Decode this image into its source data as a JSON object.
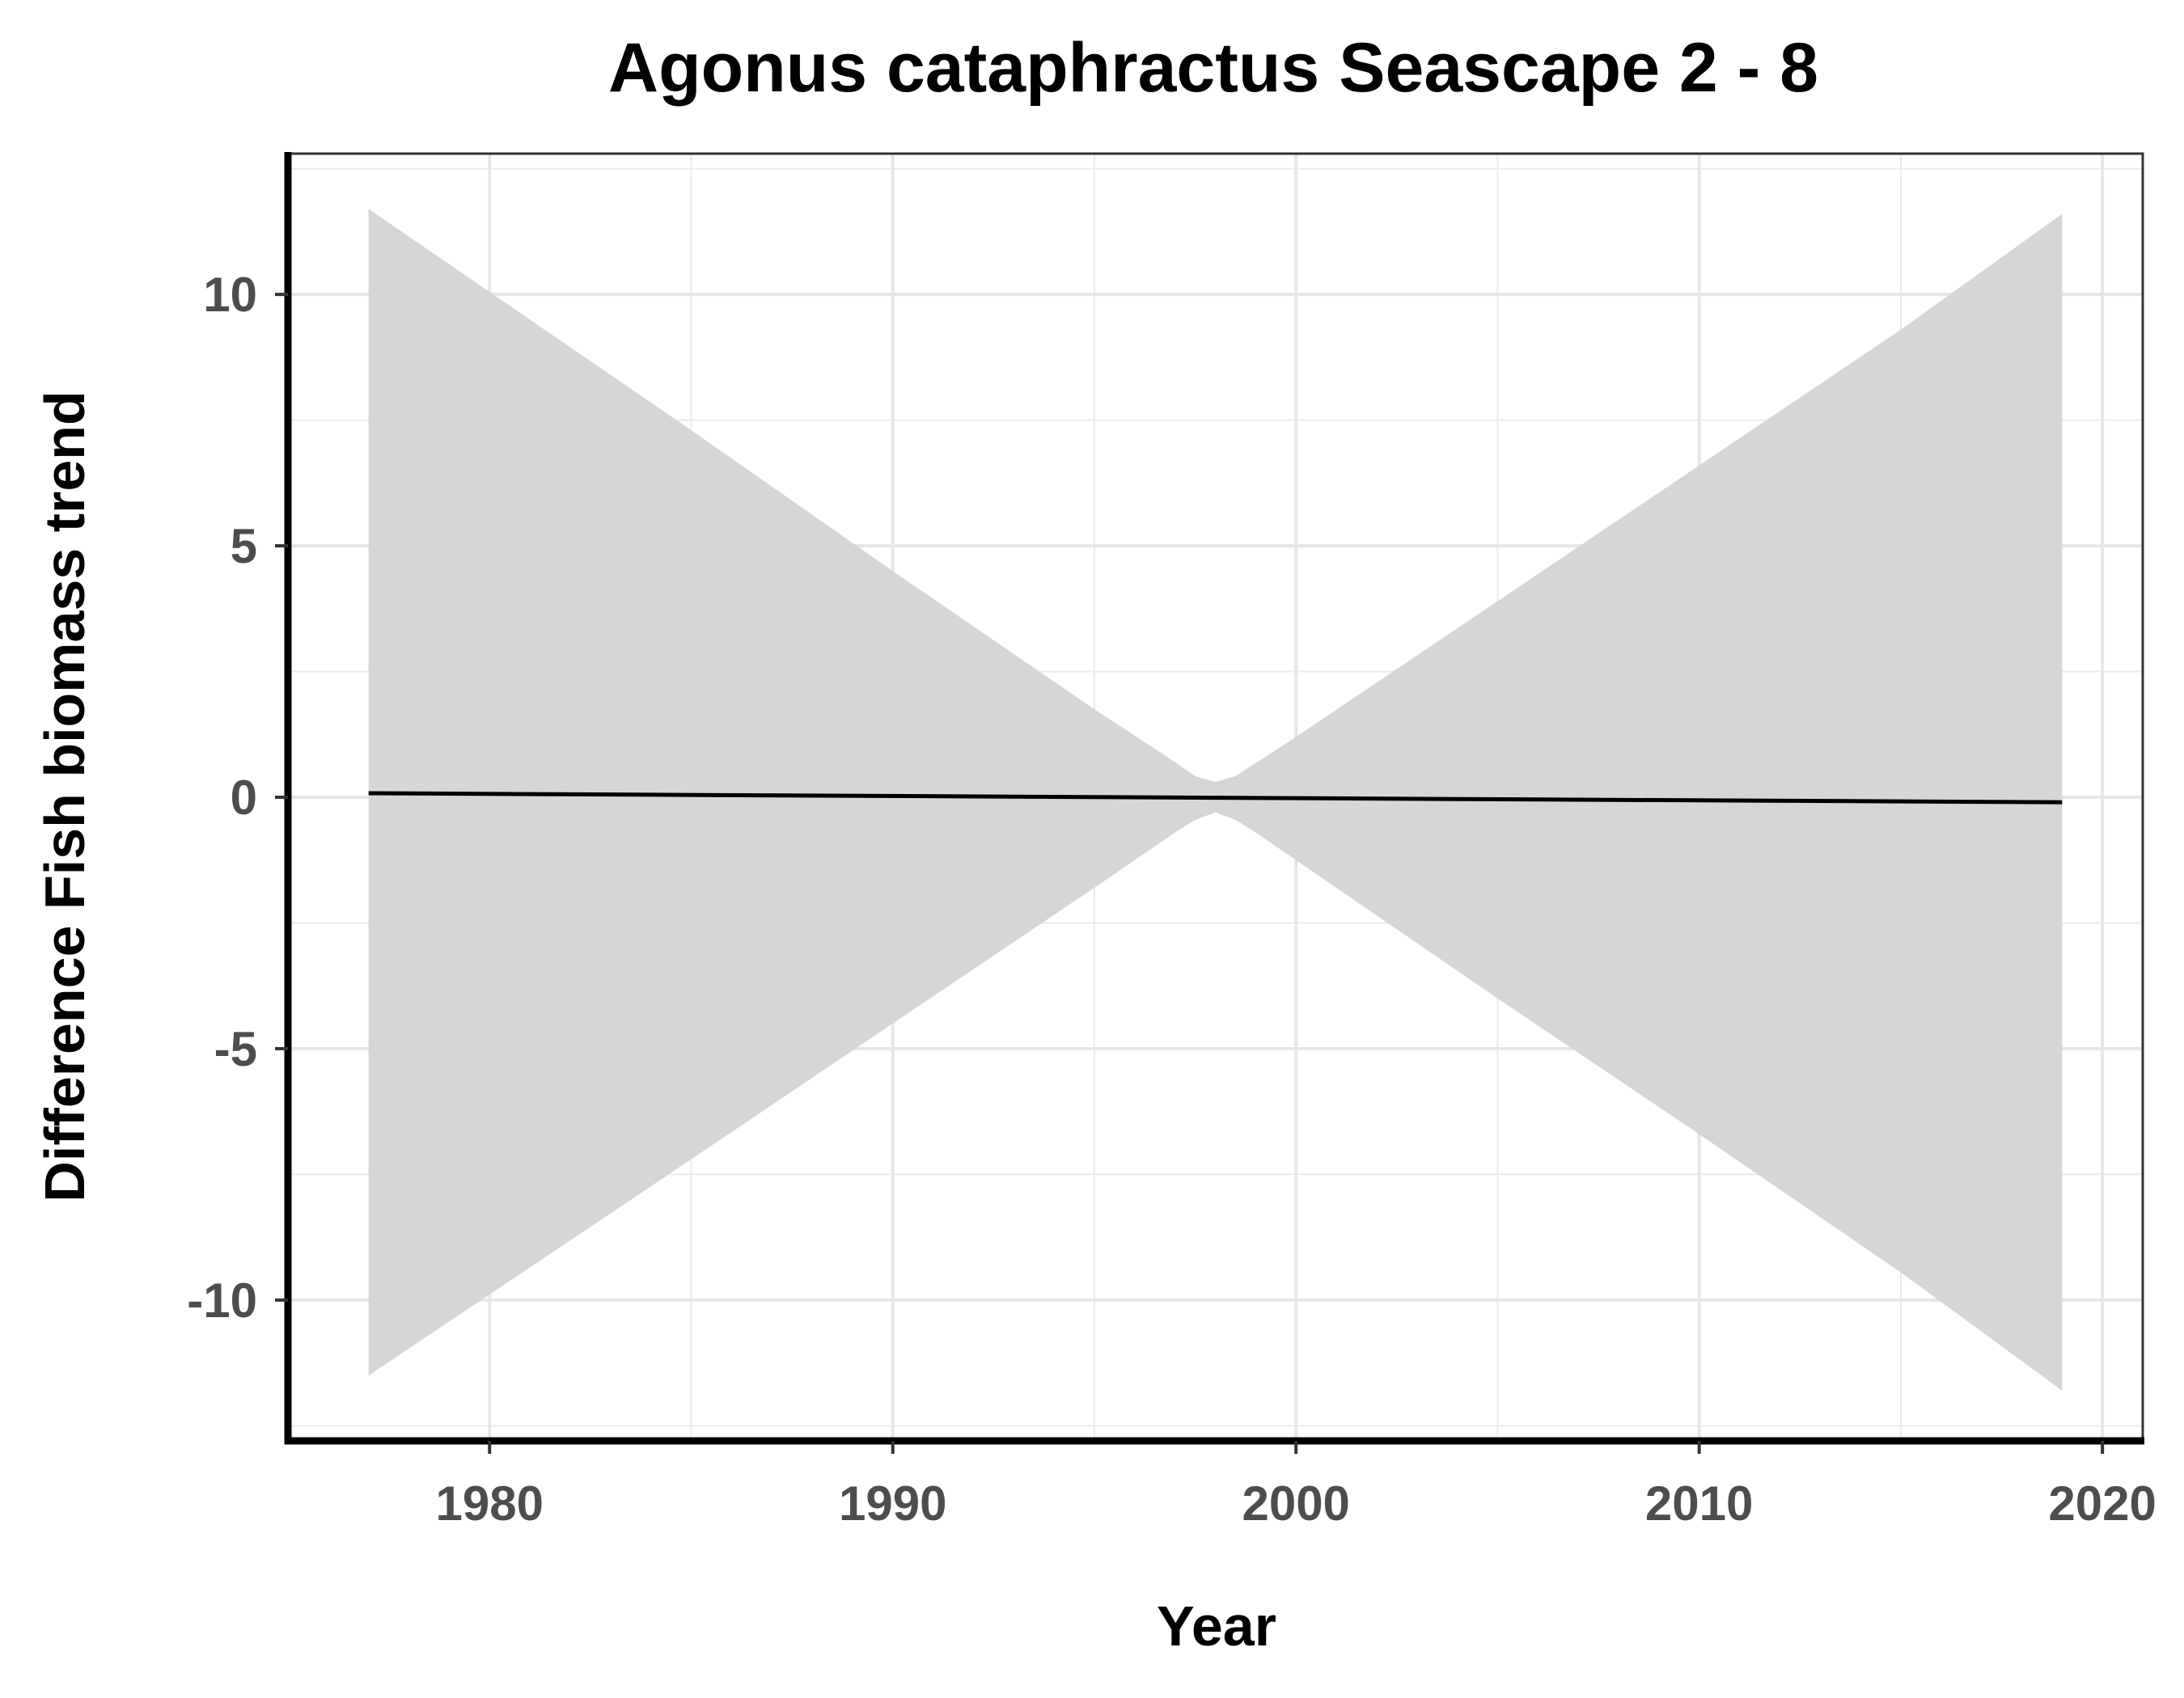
{
  "chart_data": {
    "type": "line",
    "title": "Agonus cataphractus Seascape 2 - 8",
    "xlabel": "Year",
    "ylabel": "Difference Fish biomass trend",
    "xlim": [
      1975,
      2021
    ],
    "ylim": [
      -12.8,
      12.8
    ],
    "x_ticks": [
      1980,
      1990,
      2000,
      2010,
      2020
    ],
    "x_tick_labels": [
      "1980",
      "1990",
      "2000",
      "2010",
      "2020"
    ],
    "y_ticks": [
      10,
      5,
      0,
      -5,
      -10
    ],
    "y_tick_labels": [
      "10",
      "5",
      "0",
      "-5",
      "-10"
    ],
    "x_minor_ticks": [
      1975,
      1985,
      1995,
      2005,
      2015
    ],
    "y_minor_ticks": [
      12.5,
      7.5,
      2.5,
      -2.5,
      -7.5,
      -12.5
    ],
    "grid": true,
    "series": [
      {
        "x": [
          1977,
          2019
        ],
        "values": [
          0.08,
          -0.1
        ]
      }
    ],
    "ribbon": {
      "color": "#d6d6d6",
      "x": [
        1977,
        1985,
        1990,
        1995,
        1997,
        1997.5,
        1998,
        1998.5,
        1999,
        2000,
        2005,
        2010,
        2015,
        2019
      ],
      "upper": [
        11.7,
        7.3,
        4.5,
        1.75,
        0.7,
        0.42,
        0.3,
        0.42,
        0.68,
        1.2,
        3.9,
        6.6,
        9.3,
        11.6
      ],
      "lower": [
        -11.5,
        -7.2,
        -4.5,
        -1.8,
        -0.7,
        -0.45,
        -0.3,
        -0.45,
        -0.7,
        -1.25,
        -4.0,
        -6.7,
        -9.45,
        -11.8
      ]
    }
  }
}
